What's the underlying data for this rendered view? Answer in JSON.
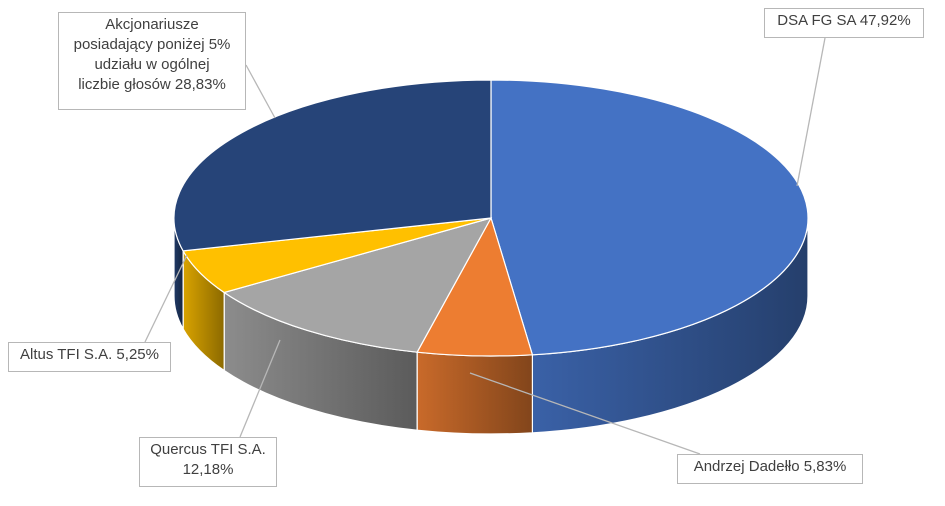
{
  "chart_data": {
    "type": "pie",
    "style": "3d",
    "categories": [
      "DSA FG SA",
      "Andrzej Dadełło",
      "Quercus TFI S.A.",
      "Altus TFI S.A.",
      "Akcjonariusze posiadający poniżej 5% udziału w ogólnej liczbie głosów"
    ],
    "values": [
      47.92,
      5.83,
      12.18,
      5.25,
      28.83
    ],
    "colors": [
      "#4472c4",
      "#ed7d31",
      "#a5a5a5",
      "#ffc000",
      "#264478"
    ],
    "labels": [
      "DSA FG SA 47,92%",
      "Andrzej Dadełło 5,83%",
      "Quercus TFI S.A. 12,18%",
      "Altus TFI S.A. 5,25%",
      "Akcjonariusze posiadający poniżej 5% udziału w ogólnej liczbie głosów 28,83%"
    ],
    "label_lines": [
      [
        "DSA FG SA 47,92%"
      ],
      [
        "Andrzej Dadełło 5,83%"
      ],
      [
        "Quercus TFI S.A.",
        "12,18%"
      ],
      [
        "Altus TFI S.A. 5,25%"
      ],
      [
        "Akcjonariusze",
        "posiadający poniżej 5%",
        "udziału w ogólnej",
        "liczbie głosów 28,83%"
      ]
    ],
    "title": "",
    "legend": "none"
  }
}
